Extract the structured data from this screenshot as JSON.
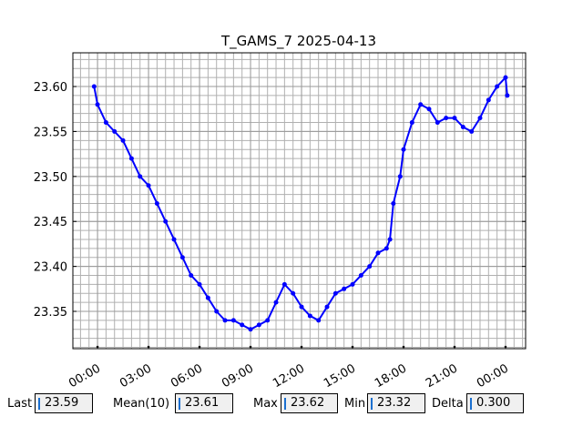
{
  "chart_data": {
    "type": "line",
    "title": "T_GAMS_7 2025-04-13",
    "x": [
      -0.2,
      0,
      0.5,
      1,
      1.5,
      2,
      2.5,
      3,
      3.5,
      4,
      4.5,
      5,
      5.5,
      6,
      6.5,
      7,
      7.5,
      8,
      8.5,
      9,
      9.5,
      10,
      10.5,
      11,
      11.5,
      12,
      12.5,
      13,
      13.5,
      14,
      14.5,
      15,
      15.5,
      16,
      16.5,
      17,
      17.2,
      17.4,
      17.8,
      18,
      18.5,
      19,
      19.5,
      20,
      20.5,
      21,
      21.5,
      22,
      22.5,
      23,
      23.5,
      24,
      24.1
    ],
    "series": [
      {
        "name": "T_GAMS_7",
        "color": "#0000ff",
        "values": [
          23.6,
          23.58,
          23.56,
          23.55,
          23.54,
          23.52,
          23.5,
          23.49,
          23.47,
          23.45,
          23.43,
          23.41,
          23.39,
          23.38,
          23.365,
          23.35,
          23.34,
          23.34,
          23.335,
          23.33,
          23.335,
          23.34,
          23.36,
          23.38,
          23.37,
          23.355,
          23.345,
          23.34,
          23.355,
          23.37,
          23.375,
          23.38,
          23.39,
          23.4,
          23.415,
          23.42,
          23.43,
          23.47,
          23.5,
          23.53,
          23.56,
          23.58,
          23.575,
          23.56,
          23.565,
          23.565,
          23.555,
          23.55,
          23.565,
          23.585,
          23.6,
          23.61,
          23.59
        ]
      }
    ],
    "xlim": [
      -1.45,
      25.18
    ],
    "xticks": [
      {
        "value": 0,
        "label": "00:00"
      },
      {
        "value": 3,
        "label": "03:00"
      },
      {
        "value": 6,
        "label": "06:00"
      },
      {
        "value": 9,
        "label": "09:00"
      },
      {
        "value": 12,
        "label": "12:00"
      },
      {
        "value": 15,
        "label": "15:00"
      },
      {
        "value": 18,
        "label": "18:00"
      },
      {
        "value": 21,
        "label": "21:00"
      },
      {
        "value": 24,
        "label": "00:00"
      }
    ],
    "ylim": [
      23.3085,
      23.6375
    ],
    "yticks": [
      {
        "value": 23.35,
        "label": "23.35"
      },
      {
        "value": 23.4,
        "label": "23.40"
      },
      {
        "value": 23.45,
        "label": "23.45"
      },
      {
        "value": 23.5,
        "label": "23.50"
      },
      {
        "value": 23.55,
        "label": "23.55"
      },
      {
        "value": 23.6,
        "label": "23.60"
      }
    ],
    "grid": true,
    "minor_grid": true,
    "markers": true
  },
  "stats": [
    {
      "label": "Last",
      "value": "23.59"
    },
    {
      "label": "Mean(10)",
      "value": "23.61"
    },
    {
      "label": "Max",
      "value": "23.62"
    },
    {
      "label": "Min",
      "value": "23.32"
    },
    {
      "label": "Delta",
      "value": "0.300"
    }
  ]
}
